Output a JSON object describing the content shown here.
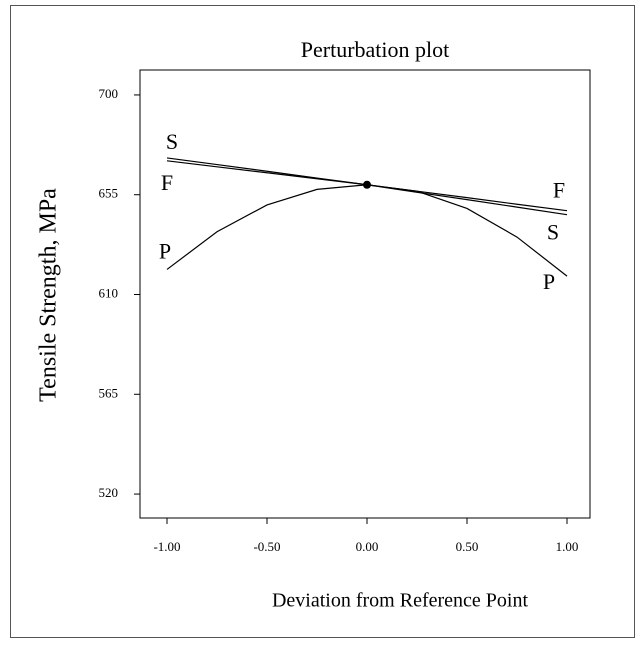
{
  "chart_data": {
    "type": "line",
    "title": "Perturbation plot",
    "x_label": "Deviation from Reference Point",
    "y_label": "Tensile Strength, MPa",
    "x": [
      -1,
      -0.75,
      -0.5,
      -0.25,
      0,
      0.25,
      0.5,
      0.75,
      1
    ],
    "series": [
      {
        "name": "S",
        "color": "#000000",
        "values": [
          671.6,
          668.6,
          665.6,
          662.5,
          659.5,
          656.1,
          652.8,
          649.4,
          646.0
        ]
      },
      {
        "name": "F",
        "color": "#000000",
        "values": [
          670.3,
          667.6,
          664.9,
          662.2,
          659.5,
          656.6,
          653.7,
          650.7,
          647.8
        ]
      },
      {
        "name": "P",
        "color": "#000000",
        "values": [
          621.3,
          638.3,
          650.4,
          657.4,
          659.5,
          656.6,
          648.8,
          635.9,
          618.3
        ]
      }
    ],
    "xlim": [
      -1.135,
      1.115
    ],
    "ylim": [
      509.2,
      711.25
    ],
    "xticks": [
      {
        "value": -1,
        "label": "-1.00"
      },
      {
        "value": -0.5,
        "label": "-0.50"
      },
      {
        "value": 0,
        "label": "0.00"
      },
      {
        "value": 0.5,
        "label": "0.50"
      },
      {
        "value": 1,
        "label": "1.00"
      }
    ],
    "yticks": [
      520,
      565,
      610,
      655,
      700
    ],
    "grid": false
  }
}
